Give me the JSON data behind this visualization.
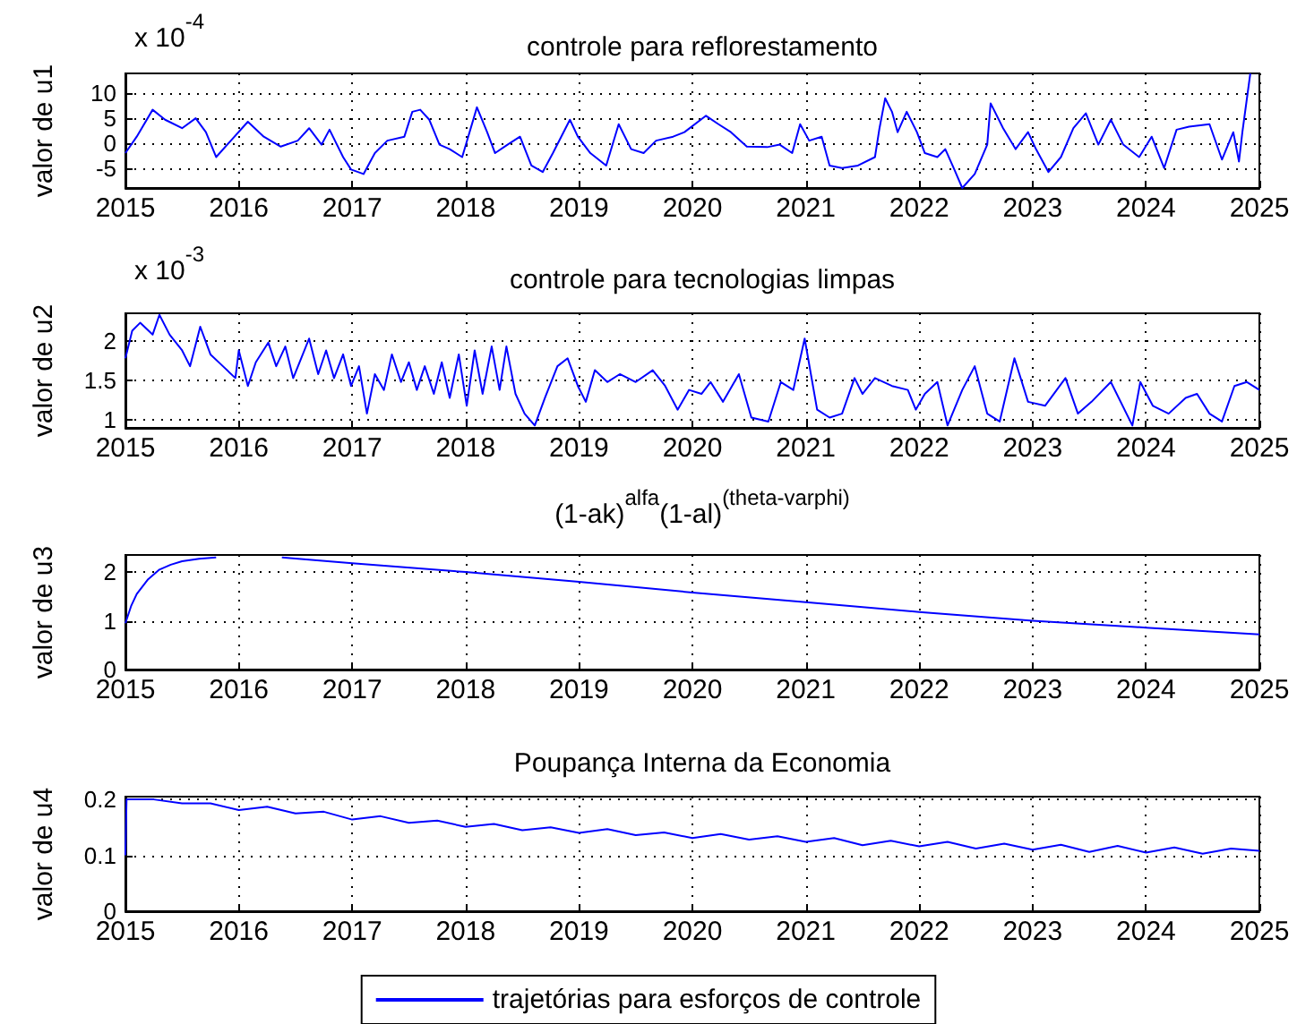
{
  "chart_data": [
    {
      "type": "line",
      "title": "controle para reflorestamento",
      "ylabel": "valor de u1",
      "annotations": [
        "x 10$^{-4}$"
      ],
      "xlim": [
        2015,
        2025
      ],
      "xticks": [
        2015,
        2016,
        2017,
        2018,
        2019,
        2020,
        2021,
        2022,
        2023,
        2024,
        2025
      ],
      "ylim": [
        -9,
        14
      ],
      "yticks": [
        -5,
        0,
        5,
        10
      ],
      "grid": true,
      "marker": "none",
      "series": [
        {
          "color": "#0000ff",
          "x": [
            2015,
            2015.1,
            2015.24,
            2015.35,
            2015.5,
            2015.62,
            2015.71,
            2015.8,
            2015.93,
            2016.08,
            2016.22,
            2016.37,
            2016.52,
            2016.62,
            2016.73,
            2016.8,
            2016.92,
            2016.99,
            2017.1,
            2017.2,
            2017.31,
            2017.46,
            2017.53,
            2017.6,
            2017.68,
            2017.77,
            2017.86,
            2017.97,
            2018.1,
            2018.19,
            2018.26,
            2018.37,
            2018.48,
            2018.58,
            2018.68,
            2018.77,
            2018.92,
            2018.99,
            2019.1,
            2019.24,
            2019.35,
            2019.46,
            2019.57,
            2019.68,
            2019.83,
            2019.93,
            2020.12,
            2020.23,
            2020.34,
            2020.48,
            2020.66,
            2020.77,
            2020.88,
            2020.95,
            2021.03,
            2021.14,
            2021.21,
            2021.32,
            2021.46,
            2021.61,
            2021.65,
            2021.7,
            2021.76,
            2021.81,
            2021.89,
            2021.98,
            2022.05,
            2022.16,
            2022.23,
            2022.31,
            2022.38,
            2022.49,
            2022.6,
            2022.63,
            2022.74,
            2022.85,
            2022.96,
            2023.03,
            2023.14,
            2023.25,
            2023.36,
            2023.47,
            2023.58,
            2023.69,
            2023.8,
            2023.94,
            2024.05,
            2024.16,
            2024.27,
            2024.38,
            2024.56,
            2024.67,
            2024.77,
            2024.82,
            2024.85,
            2024.92
          ],
          "values": [
            -2,
            1.3,
            6.7,
            4.7,
            3,
            5,
            2.2,
            -2.8,
            0.5,
            4.3,
            1.3,
            -0.7,
            0.5,
            3,
            -0.3,
            2.7,
            -2.8,
            -5.3,
            -6.2,
            -2,
            0.5,
            1.3,
            6.3,
            6.7,
            4.7,
            -0.3,
            -1.2,
            -2.8,
            7.2,
            2.2,
            -2,
            -0.3,
            1.3,
            -4.5,
            -5.8,
            -2,
            4.7,
            1.3,
            -2,
            -4.5,
            3.8,
            -1.2,
            -2,
            0.5,
            1.3,
            2.2,
            5.5,
            3.8,
            2.2,
            -0.7,
            -0.8,
            -0.3,
            -2,
            3.8,
            0.5,
            1.3,
            -4.5,
            -5,
            -4.5,
            -2.8,
            3,
            9,
            6.3,
            2.2,
            6.3,
            2.2,
            -2,
            -2.8,
            -1.2,
            -5.3,
            -9,
            -6.2,
            -0.3,
            8,
            3,
            -1.2,
            2.2,
            -1.2,
            -5.8,
            -2.8,
            3,
            6,
            -0.3,
            4.7,
            -0.3,
            -2.8,
            1.3,
            -5,
            2.7,
            3.3,
            3.8,
            -3.3,
            2.2,
            -3.7,
            2.2,
            14
          ]
        }
      ]
    },
    {
      "type": "line",
      "title": "controle para tecnologias limpas",
      "ylabel": "valor de u2",
      "annotations": [
        "x 10$^{-3}$"
      ],
      "xlim": [
        2015,
        2025
      ],
      "xticks": [
        2015,
        2016,
        2017,
        2018,
        2019,
        2020,
        2021,
        2022,
        2023,
        2024,
        2025
      ],
      "ylim": [
        0.9,
        2.35
      ],
      "yticks": [
        1,
        1.5,
        2
      ],
      "grid": true,
      "marker": "none",
      "series": [
        {
          "color": "#0000ff",
          "x": [
            2015,
            2015.06,
            2015.13,
            2015.24,
            2015.3,
            2015.39,
            2015.5,
            2015.57,
            2015.66,
            2015.75,
            2015.86,
            2015.97,
            2016,
            2016.08,
            2016.15,
            2016.26,
            2016.33,
            2016.41,
            2016.48,
            2016.55,
            2016.62,
            2016.7,
            2016.77,
            2016.84,
            2016.92,
            2016.99,
            2017.06,
            2017.13,
            2017.2,
            2017.28,
            2017.35,
            2017.43,
            2017.5,
            2017.57,
            2017.64,
            2017.72,
            2017.79,
            2017.86,
            2017.94,
            2018.01,
            2018.08,
            2018.15,
            2018.23,
            2018.3,
            2018.36,
            2018.44,
            2018.52,
            2018.61,
            2018.7,
            2018.81,
            2018.9,
            2018.99,
            2019.06,
            2019.14,
            2019.25,
            2019.36,
            2019.5,
            2019.65,
            2019.76,
            2019.87,
            2019.97,
            2020.08,
            2020.16,
            2020.27,
            2020.41,
            2020.52,
            2020.67,
            2020.78,
            2020.89,
            2020.99,
            2021.1,
            2021.21,
            2021.32,
            2021.43,
            2021.5,
            2021.61,
            2021.76,
            2021.9,
            2021.97,
            2022.05,
            2022.16,
            2022.25,
            2022.38,
            2022.49,
            2022.6,
            2022.71,
            2022.84,
            2022.96,
            2023.11,
            2023.29,
            2023.4,
            2023.52,
            2023.69,
            2023.88,
            2023.95,
            2024.06,
            2024.2,
            2024.35,
            2024.45,
            2024.56,
            2024.67,
            2024.78,
            2024.89,
            2025
          ],
          "values": [
            1.78,
            2.13,
            2.23,
            2.08,
            2.33,
            2.08,
            1.88,
            1.68,
            2.18,
            1.83,
            1.68,
            1.53,
            1.88,
            1.43,
            1.73,
            1.98,
            1.68,
            1.93,
            1.53,
            1.78,
            2.03,
            1.58,
            1.88,
            1.53,
            1.83,
            1.43,
            1.68,
            1.08,
            1.58,
            1.38,
            1.83,
            1.48,
            1.73,
            1.38,
            1.68,
            1.33,
            1.73,
            1.28,
            1.83,
            1.18,
            1.88,
            1.33,
            1.93,
            1.38,
            1.93,
            1.33,
            1.08,
            0.93,
            1.28,
            1.68,
            1.78,
            1.43,
            1.23,
            1.63,
            1.48,
            1.58,
            1.48,
            1.63,
            1.43,
            1.13,
            1.38,
            1.33,
            1.48,
            1.23,
            1.58,
            1.03,
            0.98,
            1.48,
            1.38,
            2.03,
            1.13,
            1.03,
            1.08,
            1.53,
            1.33,
            1.53,
            1.43,
            1.38,
            1.13,
            1.33,
            1.48,
            0.93,
            1.38,
            1.68,
            1.08,
            0.98,
            1.78,
            1.23,
            1.18,
            1.53,
            1.08,
            1.23,
            1.48,
            0.93,
            1.48,
            1.18,
            1.08,
            1.28,
            1.33,
            1.08,
            0.98,
            1.43,
            1.48,
            1.38
          ]
        }
      ]
    },
    {
      "type": "line",
      "title": "(1-ak)$^{alfa}$(1-al)$^{(theta-varphi)}$",
      "ylabel": "valor de u3",
      "xlim": [
        2015,
        2025
      ],
      "xticks": [
        2015,
        2016,
        2017,
        2018,
        2019,
        2020,
        2021,
        2022,
        2023,
        2024,
        2025
      ],
      "ylim": [
        0,
        2.35
      ],
      "yticks": [
        0,
        1,
        2
      ],
      "grid": true,
      "marker": "none",
      "series": [
        {
          "color": "#0000ff",
          "x": [
            2015,
            2015.05,
            2015.1,
            2015.2,
            2015.3,
            2015.4,
            2015.5,
            2015.65,
            2015.8,
            2016.1,
            2016.38,
            2017,
            2018,
            2019,
            2020,
            2021,
            2022,
            2023,
            2024,
            2025
          ],
          "values": [
            0.95,
            1.3,
            1.55,
            1.85,
            2.05,
            2.15,
            2.22,
            2.27,
            2.3,
            null,
            2.3,
            2.18,
            2.0,
            1.8,
            1.58,
            1.38,
            1.18,
            1.0,
            0.86,
            0.72
          ]
        }
      ]
    },
    {
      "type": "line",
      "title": "Poupança Interna da Economia",
      "ylabel": "valor de u4",
      "xlim": [
        2015,
        2025
      ],
      "xticks": [
        2015,
        2016,
        2017,
        2018,
        2019,
        2020,
        2021,
        2022,
        2023,
        2024,
        2025
      ],
      "ylim": [
        0,
        0.205
      ],
      "yticks": [
        0,
        0.1,
        0.2
      ],
      "grid": true,
      "marker": "none",
      "legend": "bottom",
      "series": [
        {
          "name": "trajetórias para esforços de controle",
          "color": "#0000ff",
          "x": [
            2015,
            2015.01,
            2015.25,
            2015.5,
            2015.75,
            2016,
            2016.25,
            2016.5,
            2016.75,
            2017,
            2017.25,
            2017.5,
            2017.75,
            2018,
            2018.25,
            2018.5,
            2018.75,
            2019,
            2019.25,
            2019.5,
            2019.75,
            2020,
            2020.25,
            2020.5,
            2020.75,
            2021,
            2021.25,
            2021.5,
            2021.75,
            2022,
            2022.25,
            2022.5,
            2022.75,
            2023,
            2023.25,
            2023.5,
            2023.75,
            2024,
            2024.25,
            2024.5,
            2024.75,
            2025
          ],
          "values": [
            0.1,
            0.2,
            0.2,
            0.193,
            0.193,
            0.181,
            0.187,
            0.175,
            0.178,
            0.164,
            0.17,
            0.158,
            0.162,
            0.151,
            0.156,
            0.145,
            0.15,
            0.14,
            0.147,
            0.136,
            0.141,
            0.131,
            0.138,
            0.128,
            0.134,
            0.124,
            0.131,
            0.118,
            0.126,
            0.116,
            0.124,
            0.112,
            0.121,
            0.11,
            0.119,
            0.106,
            0.117,
            0.105,
            0.114,
            0.103,
            0.112,
            0.108
          ]
        }
      ]
    }
  ]
}
